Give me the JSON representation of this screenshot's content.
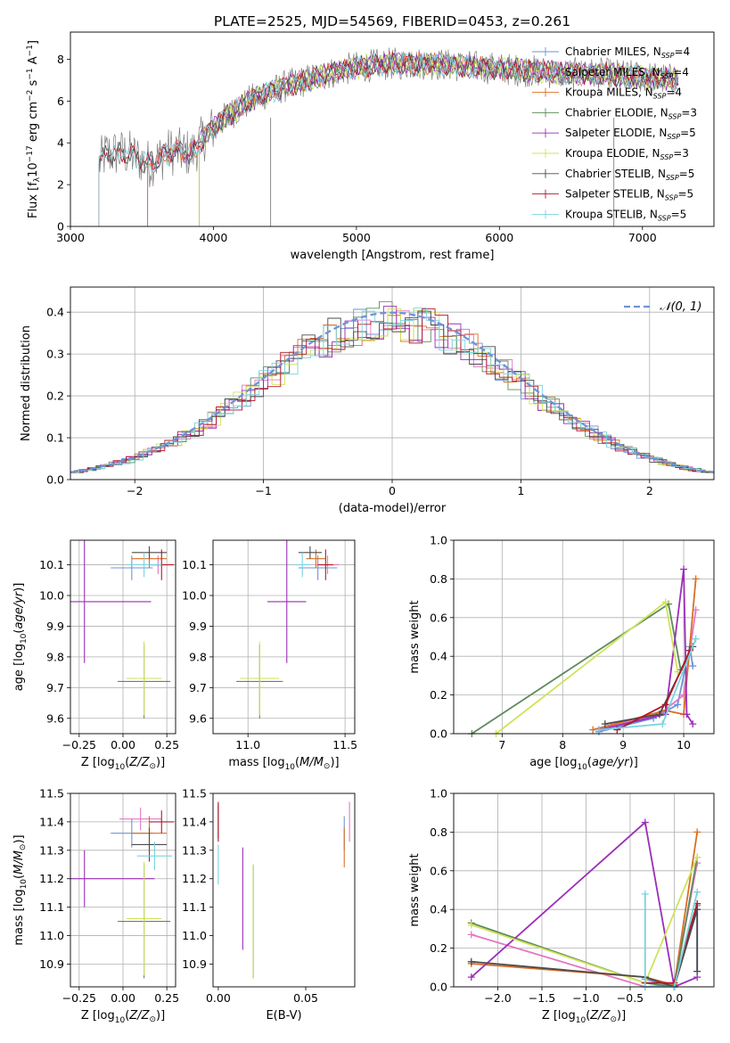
{
  "page_title": "PLATE=2525, MJD=54569, FIBERID=0453, z=0.261",
  "colors": {
    "Chabrier MILES": "#6f93d7",
    "Salpeter MILES": "#e377c2",
    "Kroupa MILES": "#d96f25",
    "Chabrier ELODIE": "#5e8b5a",
    "Salpeter ELODIE": "#9b2fb8",
    "Kroupa ELODIE": "#cfe35a",
    "Chabrier STELIB": "#4b4b4b",
    "Salpeter STELIB": "#b2182b",
    "Kroupa STELIB": "#79d3de",
    "data": "#7f7f7f"
  },
  "chart_data": [
    {
      "id": "spectrum",
      "type": "line",
      "title": "PLATE=2525, MJD=54569, FIBERID=0453, z=0.261",
      "xlabel": "wavelength [Angstrom, rest frame]",
      "ylabel": "Flux [f_λ10^-17 erg cm^-2 s^-1 A^-1]",
      "xlim": [
        3000,
        7500
      ],
      "ylim": [
        0,
        9.3
      ],
      "xticks": [
        3000,
        4000,
        5000,
        6000,
        7000
      ],
      "yticks": [
        0,
        2,
        4,
        6,
        8
      ],
      "grid": false,
      "legend_position": "right",
      "legend": [
        {
          "name": "Chabrier MILES",
          "suffix": "=4"
        },
        {
          "name": "Salpeter MILES",
          "suffix": "=4"
        },
        {
          "name": "Kroupa MILES",
          "suffix": "=4"
        },
        {
          "name": "Chabrier ELODIE",
          "suffix": "=3"
        },
        {
          "name": "Salpeter ELODIE",
          "suffix": "=5"
        },
        {
          "name": "Kroupa ELODIE",
          "suffix": "=3"
        },
        {
          "name": "Chabrier STELIB",
          "suffix": "=5"
        },
        {
          "name": "Salpeter STELIB",
          "suffix": "=5"
        },
        {
          "name": "Kroupa STELIB",
          "suffix": "=5"
        }
      ],
      "model_continuum": {
        "x": [
          3200,
          3250,
          3400,
          3550,
          3700,
          3850,
          3950,
          4100,
          4300,
          4500,
          4700,
          4900,
          5100,
          5300,
          5500,
          5700,
          5900,
          6100,
          6300,
          6500,
          6700,
          6900,
          7100,
          7250
        ],
        "y": [
          3.0,
          3.5,
          3.5,
          3.0,
          3.6,
          3.5,
          4.4,
          5.3,
          6.2,
          6.7,
          7.1,
          7.5,
          7.7,
          7.8,
          7.8,
          7.7,
          7.6,
          7.5,
          7.4,
          7.3,
          7.3,
          7.2,
          7.1,
          7.0
        ]
      },
      "model_start_wavelengths": {
        "MILES": 3540,
        "ELODIE": 3900,
        "STELIB": 3200
      }
    },
    {
      "id": "residuals",
      "type": "bar",
      "xlabel": "(data-model)/error",
      "ylabel": "Normed distribution",
      "xlim": [
        -2.5,
        2.5
      ],
      "ylim": [
        0,
        0.46
      ],
      "xticks": [
        -2,
        -1,
        0,
        1,
        2
      ],
      "yticks": [
        0.0,
        0.1,
        0.2,
        0.3,
        0.4
      ],
      "grid": true,
      "legend_position": "top-right",
      "normal_label": "𝒩(0, 1)",
      "normal_color": "#6f93d7"
    },
    {
      "id": "age-vs-Z",
      "type": "scatter",
      "xlabel": "Z [log10(Z/Z⊙)]",
      "ylabel": "age [log10(age/yr)]",
      "xlim": [
        -0.3,
        0.3
      ],
      "ylim": [
        9.55,
        10.18
      ],
      "xticks": [
        -0.25,
        0.0,
        0.25
      ],
      "yticks": [
        9.6,
        9.7,
        9.8,
        9.9,
        10.0,
        10.1
      ],
      "grid": true,
      "points": [
        {
          "series": "Chabrier MILES",
          "x": 0.05,
          "y": 10.09,
          "xerr": 0.12,
          "yerr": 0.04
        },
        {
          "series": "Salpeter MILES",
          "x": 0.2,
          "y": 10.1,
          "xerr": 0.05,
          "yerr": 0.03
        },
        {
          "series": "Kroupa MILES",
          "x": 0.15,
          "y": 10.12,
          "xerr": 0.1,
          "yerr": 0.03
        },
        {
          "series": "Chabrier ELODIE",
          "x": 0.12,
          "y": 9.72,
          "xerr": 0.15,
          "yerr": 0.12
        },
        {
          "series": "Salpeter ELODIE",
          "x": -0.22,
          "y": 9.98,
          "xerr": 0.38,
          "yerr": 0.2
        },
        {
          "series": "Kroupa ELODIE",
          "x": 0.12,
          "y": 9.73,
          "xerr": 0.1,
          "yerr": 0.12
        },
        {
          "series": "Chabrier STELIB",
          "x": 0.15,
          "y": 10.14,
          "xerr": 0.1,
          "yerr": 0.02
        },
        {
          "series": "Salpeter STELIB",
          "x": 0.22,
          "y": 10.1,
          "xerr": 0.07,
          "yerr": 0.05
        },
        {
          "series": "Kroupa STELIB",
          "x": 0.12,
          "y": 10.1,
          "xerr": 0.1,
          "yerr": 0.04
        }
      ]
    },
    {
      "id": "age-vs-mass",
      "type": "scatter",
      "xlabel": "mass [log10(M/M⊙)]",
      "ylabel": "",
      "xlim": [
        10.82,
        11.55
      ],
      "ylim": [
        9.55,
        10.18
      ],
      "xticks": [
        11.0,
        11.5
      ],
      "yticks": [
        9.6,
        9.7,
        9.8,
        9.9,
        10.0,
        10.1
      ],
      "grid": true,
      "points": [
        {
          "series": "Chabrier MILES",
          "x": 11.36,
          "y": 10.09,
          "xerr": 0.1,
          "yerr": 0.04
        },
        {
          "series": "Salpeter MILES",
          "x": 11.41,
          "y": 10.1,
          "xerr": 0.06,
          "yerr": 0.03
        },
        {
          "series": "Kroupa MILES",
          "x": 11.35,
          "y": 10.12,
          "xerr": 0.05,
          "yerr": 0.03
        },
        {
          "series": "Chabrier ELODIE",
          "x": 11.06,
          "y": 9.72,
          "xerr": 0.12,
          "yerr": 0.12
        },
        {
          "series": "Salpeter ELODIE",
          "x": 11.2,
          "y": 9.98,
          "xerr": 0.1,
          "yerr": 0.2
        },
        {
          "series": "Kroupa ELODIE",
          "x": 11.06,
          "y": 9.73,
          "xerr": 0.1,
          "yerr": 0.12
        },
        {
          "series": "Chabrier STELIB",
          "x": 11.32,
          "y": 10.14,
          "xerr": 0.06,
          "yerr": 0.02
        },
        {
          "series": "Salpeter STELIB",
          "x": 11.4,
          "y": 10.1,
          "xerr": 0.04,
          "yerr": 0.05
        },
        {
          "series": "Kroupa STELIB",
          "x": 11.28,
          "y": 10.1,
          "xerr": 0.04,
          "yerr": 0.04
        }
      ]
    },
    {
      "id": "weight-vs-age",
      "type": "line",
      "xlabel": "age [log10(age/yr)]",
      "ylabel": "mass weight",
      "xlim": [
        6.2,
        10.5
      ],
      "ylim": [
        0,
        1.0
      ],
      "xticks": [
        7,
        8,
        9,
        10
      ],
      "yticks": [
        0.0,
        0.2,
        0.4,
        0.6,
        0.8,
        1.0
      ],
      "grid": true,
      "series": [
        {
          "name": "Chabrier MILES",
          "x": [
            8.6,
            9.5,
            9.9,
            10.1,
            10.15
          ],
          "y": [
            0.01,
            0.08,
            0.15,
            0.45,
            0.35
          ]
        },
        {
          "name": "Salpeter MILES",
          "x": [
            8.8,
            9.6,
            10.0,
            10.2
          ],
          "y": [
            0.04,
            0.1,
            0.2,
            0.64
          ]
        },
        {
          "name": "Kroupa MILES",
          "x": [
            8.5,
            9.7,
            10.0,
            10.2
          ],
          "y": [
            0.02,
            0.12,
            0.1,
            0.8
          ]
        },
        {
          "name": "Chabrier ELODIE",
          "x": [
            6.5,
            9.75,
            9.95
          ],
          "y": [
            0.0,
            0.67,
            0.33
          ]
        },
        {
          "name": "Salpeter ELODIE",
          "x": [
            8.6,
            9.7,
            10.0,
            10.05,
            10.15
          ],
          "y": [
            0.02,
            0.1,
            0.85,
            0.1,
            0.05
          ]
        },
        {
          "name": "Kroupa ELODIE",
          "x": [
            6.9,
            9.7,
            9.9
          ],
          "y": [
            0.0,
            0.68,
            0.32
          ]
        },
        {
          "name": "Chabrier STELIB",
          "x": [
            8.7,
            9.6,
            10.15
          ],
          "y": [
            0.05,
            0.1,
            0.45
          ]
        },
        {
          "name": "Salpeter STELIB",
          "x": [
            8.9,
            9.7,
            10.1
          ],
          "y": [
            0.02,
            0.15,
            0.43
          ]
        },
        {
          "name": "Kroupa STELIB",
          "x": [
            8.6,
            9.65,
            10.2
          ],
          "y": [
            0.02,
            0.05,
            0.49
          ]
        }
      ]
    },
    {
      "id": "mass-vs-Z",
      "type": "scatter",
      "xlabel": "Z [log10(Z/Z⊙)]",
      "ylabel": "mass [log10(M/M⊙)]",
      "xlim": [
        -0.3,
        0.3
      ],
      "ylim": [
        10.82,
        11.5
      ],
      "xticks": [
        -0.25,
        0.0,
        0.25
      ],
      "yticks": [
        10.9,
        11.0,
        11.1,
        11.2,
        11.3,
        11.4,
        11.5
      ],
      "grid": true,
      "points": [
        {
          "series": "Chabrier MILES",
          "x": 0.05,
          "y": 11.36,
          "xerr": 0.12,
          "yerr": 0.05
        },
        {
          "series": "Salpeter MILES",
          "x": 0.1,
          "y": 11.41,
          "xerr": 0.12,
          "yerr": 0.04
        },
        {
          "series": "Kroupa MILES",
          "x": 0.15,
          "y": 11.36,
          "xerr": 0.1,
          "yerr": 0.06
        },
        {
          "series": "Chabrier ELODIE",
          "x": 0.12,
          "y": 11.05,
          "xerr": 0.15,
          "yerr": 0.2
        },
        {
          "series": "Salpeter ELODIE",
          "x": -0.22,
          "y": 11.2,
          "xerr": 0.4,
          "yerr": 0.1
        },
        {
          "series": "Kroupa ELODIE",
          "x": 0.12,
          "y": 11.06,
          "xerr": 0.1,
          "yerr": 0.2
        },
        {
          "series": "Chabrier STELIB",
          "x": 0.15,
          "y": 11.32,
          "xerr": 0.1,
          "yerr": 0.06
        },
        {
          "series": "Salpeter STELIB",
          "x": 0.22,
          "y": 11.4,
          "xerr": 0.07,
          "yerr": 0.04
        },
        {
          "series": "Kroupa STELIB",
          "x": 0.18,
          "y": 11.28,
          "xerr": 0.1,
          "yerr": 0.05
        }
      ]
    },
    {
      "id": "mass-vs-ebv",
      "type": "scatter",
      "xlabel": "E(B-V)",
      "ylabel": "",
      "xlim": [
        -0.003,
        0.078
      ],
      "ylim": [
        10.82,
        11.5
      ],
      "xticks": [
        0.0,
        0.05
      ],
      "yticks": [
        10.9,
        11.0,
        11.1,
        11.2,
        11.3,
        11.4,
        11.5
      ],
      "grid": false,
      "points": [
        {
          "series": "Chabrier MILES",
          "x": 0.072,
          "y": 11.36,
          "xerr": 0,
          "yerr": 0.06
        },
        {
          "series": "Salpeter MILES",
          "x": 0.075,
          "y": 11.4,
          "xerr": 0,
          "yerr": 0.07
        },
        {
          "series": "Kroupa MILES",
          "x": 0.072,
          "y": 11.31,
          "xerr": 0,
          "yerr": 0.07
        },
        {
          "series": "Chabrier ELODIE",
          "x": 0.02,
          "y": 11.05,
          "xerr": 0,
          "yerr": 0.2
        },
        {
          "series": "Salpeter ELODIE",
          "x": 0.014,
          "y": 11.13,
          "xerr": 0,
          "yerr": 0.18
        },
        {
          "series": "Kroupa ELODIE",
          "x": 0.02,
          "y": 11.05,
          "xerr": 0,
          "yerr": 0.2
        },
        {
          "series": "Chabrier STELIB",
          "x": 0.0,
          "y": 11.4,
          "xerr": 0,
          "yerr": 0.06
        },
        {
          "series": "Salpeter STELIB",
          "x": 0.0,
          "y": 11.4,
          "xerr": 0,
          "yerr": 0.07
        },
        {
          "series": "Kroupa STELIB",
          "x": 0.0,
          "y": 11.25,
          "xerr": 0,
          "yerr": 0.07
        }
      ]
    },
    {
      "id": "weight-vs-Z",
      "type": "line",
      "xlabel": "Z [log10(Z/Z⊙)]",
      "ylabel": "mass weight",
      "xlim": [
        -2.5,
        0.45
      ],
      "ylim": [
        0,
        1.0
      ],
      "xticks": [
        -2.0,
        -1.5,
        -1.0,
        -0.5,
        0.0
      ],
      "yticks": [
        0.0,
        0.2,
        0.4,
        0.6,
        0.8,
        1.0
      ],
      "grid": true,
      "series": [
        {
          "name": "Chabrier MILES",
          "x": [
            -0.33,
            0.0,
            0.26,
            0.26
          ],
          "y": [
            0.04,
            0.0,
            0.42,
            0.08
          ]
        },
        {
          "name": "Salpeter MILES",
          "x": [
            -2.3,
            -0.33,
            0.0,
            0.26
          ],
          "y": [
            0.27,
            0.0,
            0.01,
            0.64
          ]
        },
        {
          "name": "Kroupa MILES",
          "x": [
            -2.3,
            -0.33,
            0.0,
            0.26
          ],
          "y": [
            0.12,
            0.05,
            0.01,
            0.8
          ]
        },
        {
          "name": "Chabrier ELODIE",
          "x": [
            -2.3,
            -0.33,
            0.0,
            0.26
          ],
          "y": [
            0.33,
            0.02,
            0.0,
            0.67
          ]
        },
        {
          "name": "Salpeter ELODIE",
          "x": [
            -2.3,
            -0.33,
            0.0,
            0.26
          ],
          "y": [
            0.05,
            0.85,
            0.0,
            0.05
          ]
        },
        {
          "name": "Kroupa ELODIE",
          "x": [
            -2.3,
            -0.33,
            0.26
          ],
          "y": [
            0.32,
            0.02,
            0.67
          ]
        },
        {
          "name": "Chabrier STELIB",
          "x": [
            -2.3,
            -0.33,
            0.0,
            0.26,
            0.26
          ],
          "y": [
            0.13,
            0.05,
            0.0,
            0.4,
            0.08
          ]
        },
        {
          "name": "Salpeter STELIB",
          "x": [
            -0.33,
            0.0,
            0.26
          ],
          "y": [
            0.02,
            0.02,
            0.43
          ]
        },
        {
          "name": "Kroupa STELIB",
          "x": [
            -0.33,
            -0.33,
            0.0,
            0.26
          ],
          "y": [
            0.48,
            0.0,
            0.0,
            0.49
          ]
        }
      ]
    }
  ]
}
